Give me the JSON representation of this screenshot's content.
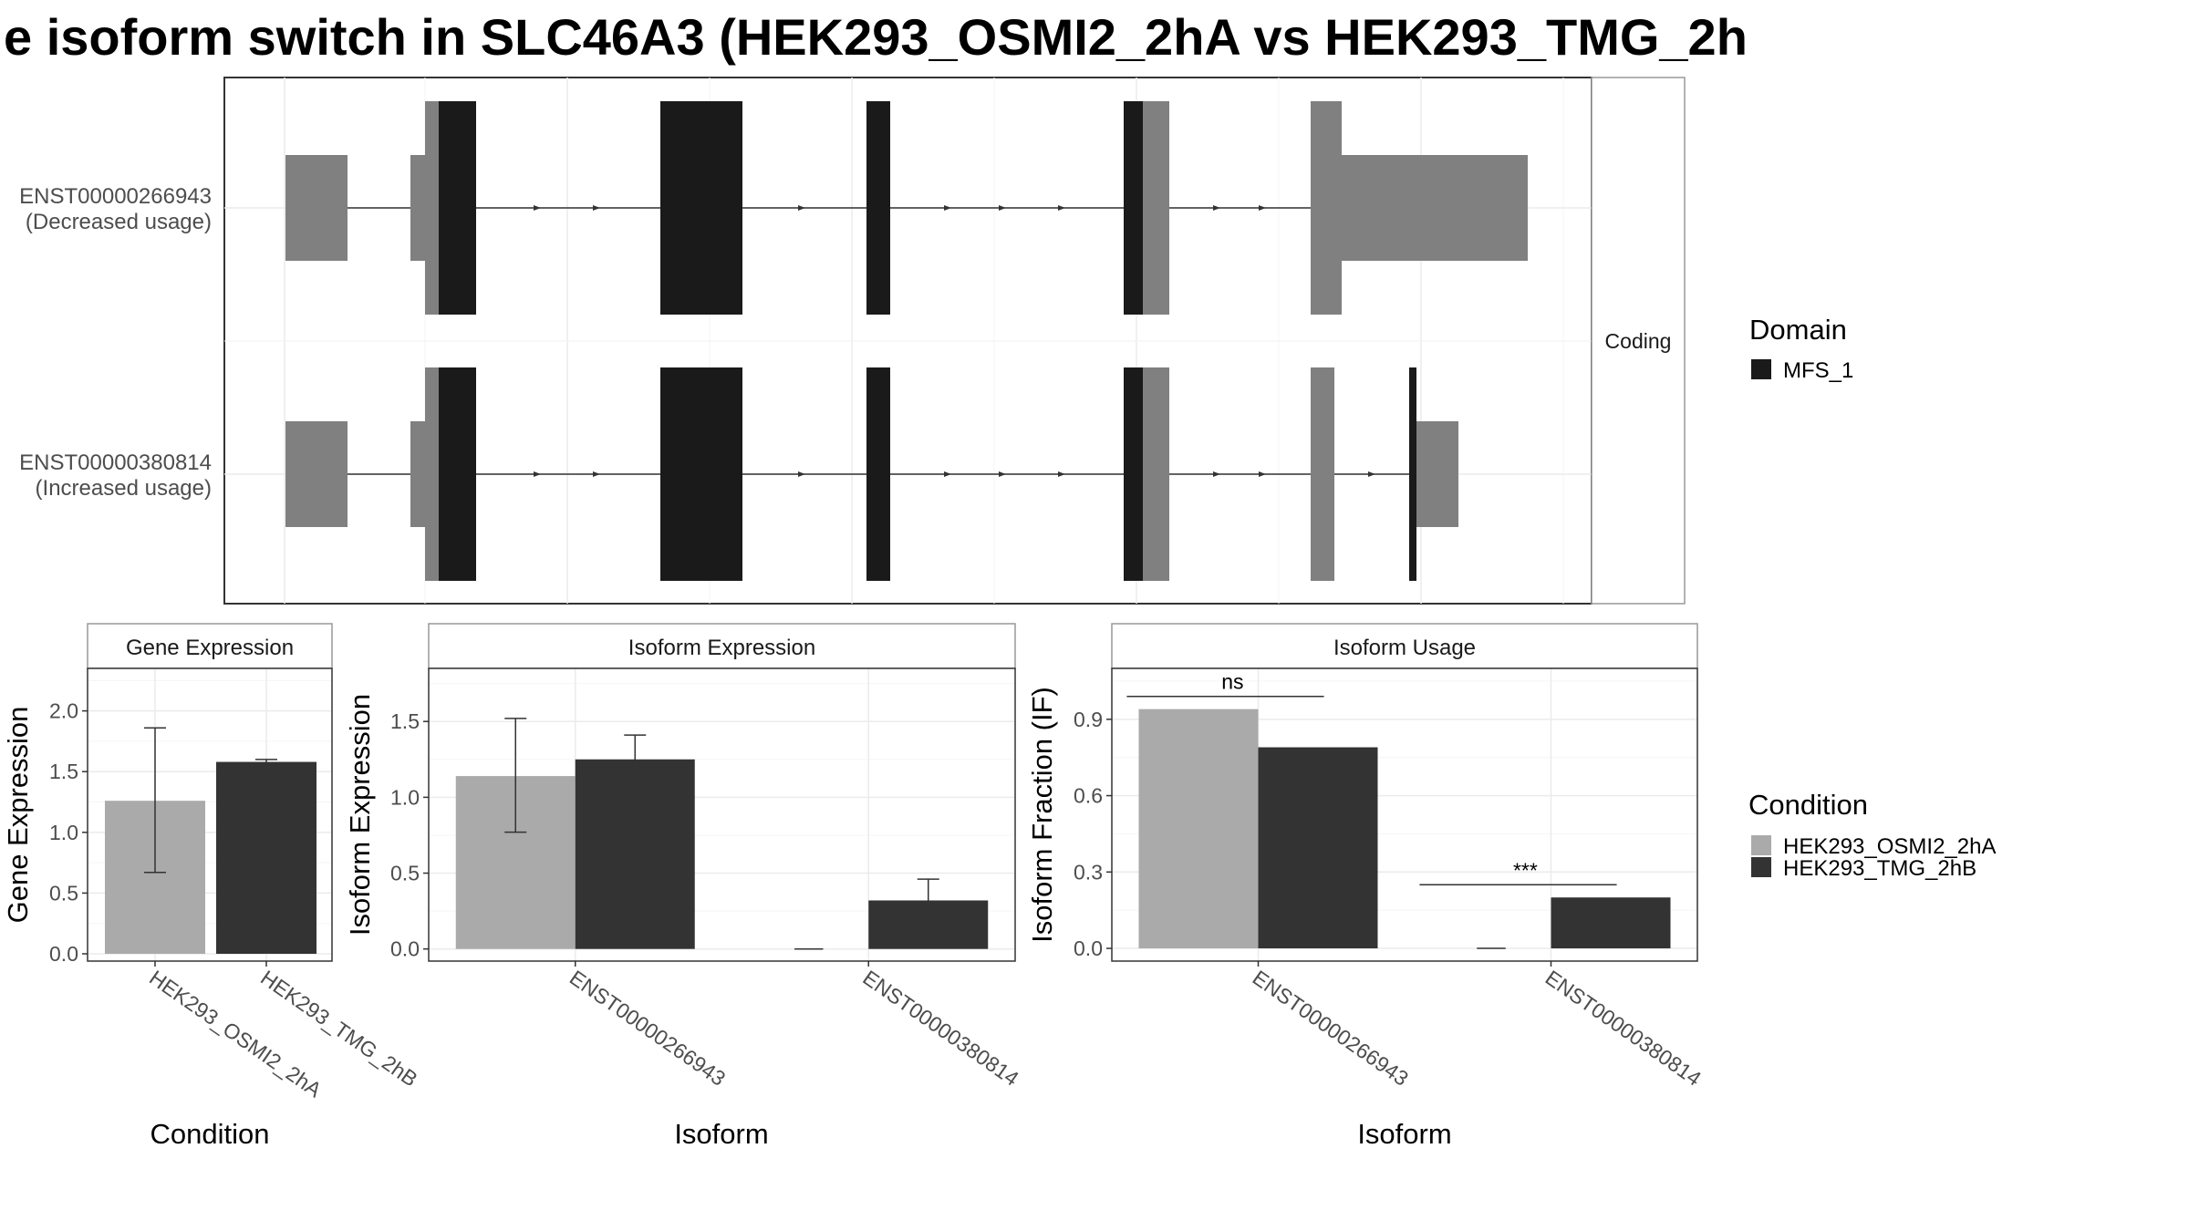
{
  "title": "e isoform switch in SLC46A3 (HEK293_OSMI2_2hA vs HEK293_TMG_2h",
  "colors": {
    "domain": "#1a1a1a",
    "exon": "#808080",
    "cond_a": "#aaaaaa",
    "cond_b": "#333333",
    "grid": "#ebebeb",
    "strip_border": "#999999"
  },
  "structure_panel": {
    "strip_label": "Coding",
    "transcripts": [
      {
        "id": "ENST00000266943",
        "usage": "(Decreased usage)"
      },
      {
        "id": "ENST00000380814",
        "usage": "(Increased usage)"
      }
    ]
  },
  "legend_domain": {
    "title": "Domain",
    "items": [
      {
        "label": "MFS_1",
        "color": "#1a1a1a"
      }
    ]
  },
  "legend_condition": {
    "title": "Condition",
    "items": [
      {
        "label": "HEK293_OSMI2_2hA",
        "color": "#aaaaaa"
      },
      {
        "label": "HEK293_TMG_2hB",
        "color": "#333333"
      }
    ]
  },
  "chart_data": [
    {
      "type": "bar",
      "panel": "Gene Expression",
      "xlabel": "Condition",
      "ylabel": "Gene Expression",
      "categories": [
        "HEK293_OSMI2_2hA",
        "HEK293_TMG_2hB"
      ],
      "values": [
        1.26,
        1.58
      ],
      "error_low": [
        0.67,
        1.56
      ],
      "error_high": [
        1.86,
        1.6
      ],
      "ylim": [
        -0.06,
        2.35
      ],
      "yticks": [
        "0.0",
        "0.5",
        "1.0",
        "1.5",
        "2.0"
      ]
    },
    {
      "type": "bar",
      "panel": "Isoform Expression",
      "xlabel": "Isoform",
      "ylabel": "Isoform Expression",
      "categories": [
        "ENST00000266943",
        "ENST00000380814"
      ],
      "series": [
        {
          "name": "HEK293_OSMI2_2hA",
          "values": [
            1.14,
            0.0
          ],
          "error_low": [
            0.77,
            0.0
          ],
          "error_high": [
            1.52,
            0.0
          ]
        },
        {
          "name": "HEK293_TMG_2hB",
          "values": [
            1.25,
            0.32
          ],
          "error_low": [
            1.09,
            0.18
          ],
          "error_high": [
            1.41,
            0.46
          ]
        }
      ],
      "ylim": [
        -0.08,
        1.85
      ],
      "yticks": [
        "0.0",
        "0.5",
        "1.0",
        "1.5"
      ]
    },
    {
      "type": "bar",
      "panel": "Isoform Usage",
      "xlabel": "Isoform",
      "ylabel": "Isoform Fraction (IF)",
      "categories": [
        "ENST00000266943",
        "ENST00000380814"
      ],
      "series": [
        {
          "name": "HEK293_OSMI2_2hA",
          "values": [
            0.94,
            0.0
          ]
        },
        {
          "name": "HEK293_TMG_2hB",
          "values": [
            0.79,
            0.2
          ]
        }
      ],
      "significance": [
        "ns",
        "***"
      ],
      "sig_level": [
        0.99,
        0.25
      ],
      "ylim": [
        -0.05,
        1.1
      ],
      "yticks": [
        "0.0",
        "0.3",
        "0.6",
        "0.9"
      ]
    }
  ]
}
